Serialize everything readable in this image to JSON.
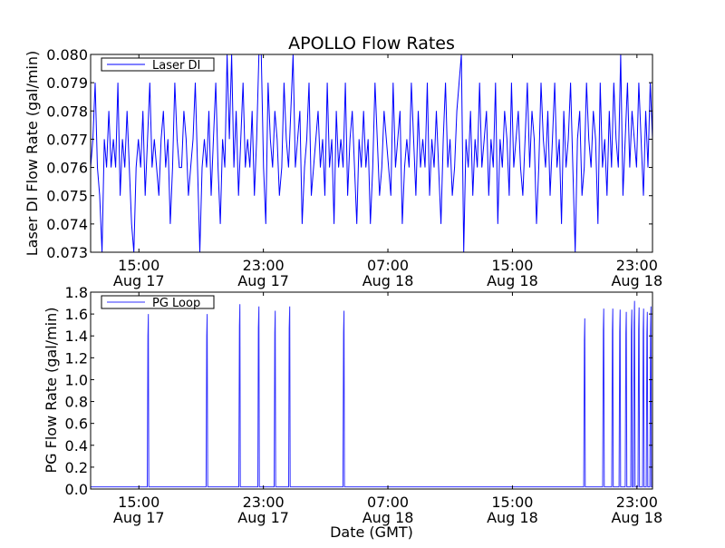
{
  "chart_data": [
    {
      "type": "line",
      "title": "APOLLO Flow Rates",
      "xlabel": "",
      "ylabel": "Laser DI Flow Rate (gal/min)",
      "x_units": "hours since Aug 17 00:00 GMT",
      "xlim": [
        11.9,
        48.0
      ],
      "ylim": [
        0.073,
        0.08
      ],
      "yticks": [
        "0.073",
        "0.074",
        "0.075",
        "0.076",
        "0.077",
        "0.078",
        "0.079",
        "0.080"
      ],
      "xticks": [
        {
          "value": 15,
          "time": "15:00",
          "date": "Aug 17"
        },
        {
          "value": 23,
          "time": "23:00",
          "date": "Aug 17"
        },
        {
          "value": 31,
          "time": "07:00",
          "date": "Aug 18"
        },
        {
          "value": 39,
          "time": "15:00",
          "date": "Aug 18"
        },
        {
          "value": 47,
          "time": "23:00",
          "date": "Aug 18"
        }
      ],
      "legend": {
        "label": "Laser DI",
        "placement": "top-left"
      },
      "color": "#0000ff",
      "series": [
        {
          "name": "Laser DI",
          "x_start": 11.9,
          "x_end": 48.0,
          "values": [
            0.076,
            0.077,
            0.079,
            0.076,
            0.075,
            0.073,
            0.077,
            0.076,
            0.078,
            0.076,
            0.077,
            0.076,
            0.079,
            0.075,
            0.077,
            0.076,
            0.078,
            0.076,
            0.074,
            0.073,
            0.076,
            0.077,
            0.076,
            0.078,
            0.075,
            0.077,
            0.079,
            0.076,
            0.077,
            0.076,
            0.075,
            0.077,
            0.078,
            0.076,
            0.077,
            0.074,
            0.076,
            0.079,
            0.077,
            0.076,
            0.076,
            0.078,
            0.077,
            0.075,
            0.076,
            0.077,
            0.079,
            0.076,
            0.073,
            0.076,
            0.077,
            0.076,
            0.078,
            0.075,
            0.077,
            0.079,
            0.076,
            0.074,
            0.077,
            0.076,
            0.08,
            0.077,
            0.08,
            0.076,
            0.078,
            0.075,
            0.077,
            0.079,
            0.076,
            0.077,
            0.076,
            0.078,
            0.075,
            0.077,
            0.08,
            0.08,
            0.076,
            0.074,
            0.079,
            0.077,
            0.076,
            0.078,
            0.077,
            0.075,
            0.076,
            0.079,
            0.077,
            0.076,
            0.078,
            0.08,
            0.076,
            0.077,
            0.078,
            0.074,
            0.076,
            0.077,
            0.079,
            0.075,
            0.076,
            0.077,
            0.078,
            0.076,
            0.077,
            0.075,
            0.079,
            0.076,
            0.077,
            0.074,
            0.078,
            0.076,
            0.077,
            0.076,
            0.079,
            0.075,
            0.077,
            0.078,
            0.076,
            0.074,
            0.077,
            0.076,
            0.078,
            0.076,
            0.077,
            0.074,
            0.076,
            0.079,
            0.077,
            0.075,
            0.076,
            0.078,
            0.077,
            0.076,
            0.075,
            0.079,
            0.076,
            0.077,
            0.078,
            0.074,
            0.076,
            0.077,
            0.076,
            0.079,
            0.077,
            0.075,
            0.078,
            0.076,
            0.077,
            0.076,
            0.079,
            0.075,
            0.077,
            0.076,
            0.078,
            0.076,
            0.074,
            0.077,
            0.079,
            0.076,
            0.077,
            0.075,
            0.076,
            0.078,
            0.079,
            0.08,
            0.073,
            0.077,
            0.076,
            0.078,
            0.075,
            0.077,
            0.076,
            0.079,
            0.076,
            0.077,
            0.078,
            0.075,
            0.077,
            0.076,
            0.079,
            0.074,
            0.077,
            0.076,
            0.078,
            0.077,
            0.075,
            0.079,
            0.076,
            0.077,
            0.078,
            0.076,
            0.075,
            0.077,
            0.079,
            0.076,
            0.078,
            0.077,
            0.074,
            0.076,
            0.079,
            0.077,
            0.076,
            0.078,
            0.075,
            0.077,
            0.079,
            0.076,
            0.077,
            0.074,
            0.078,
            0.076,
            0.077,
            0.079,
            0.076,
            0.073,
            0.077,
            0.078,
            0.075,
            0.076,
            0.079,
            0.077,
            0.076,
            0.078,
            0.077,
            0.074,
            0.079,
            0.076,
            0.077,
            0.075,
            0.078,
            0.076,
            0.079,
            0.077,
            0.076,
            0.08,
            0.075,
            0.077,
            0.079,
            0.076,
            0.078,
            0.077,
            0.076,
            0.079,
            0.077,
            0.075,
            0.078,
            0.076,
            0.079,
            0.077
          ]
        }
      ]
    },
    {
      "type": "line",
      "title": "",
      "xlabel": "Date (GMT)",
      "ylabel": "PG Flow Rate (gal/min)",
      "x_units": "hours since Aug 17 00:00 GMT",
      "xlim": [
        11.9,
        48.0
      ],
      "ylim": [
        0.0,
        1.8
      ],
      "yticks": [
        "0.0",
        "0.2",
        "0.4",
        "0.6",
        "0.8",
        "1.0",
        "1.2",
        "1.4",
        "1.6",
        "1.8"
      ],
      "xticks": [
        {
          "value": 15,
          "time": "15:00",
          "date": "Aug 17"
        },
        {
          "value": 23,
          "time": "23:00",
          "date": "Aug 17"
        },
        {
          "value": 31,
          "time": "07:00",
          "date": "Aug 18"
        },
        {
          "value": 39,
          "time": "15:00",
          "date": "Aug 18"
        },
        {
          "value": 47,
          "time": "23:00",
          "date": "Aug 18"
        }
      ],
      "legend": {
        "label": "PG Loop",
        "placement": "top-left"
      },
      "color": "#3030ff",
      "series": [
        {
          "name": "PG Loop",
          "baseline": 0.02,
          "spikes": [
            {
              "x": 15.58,
              "peak": 1.6
            },
            {
              "x": 19.36,
              "peak": 1.6
            },
            {
              "x": 21.46,
              "peak": 1.69
            },
            {
              "x": 22.68,
              "peak": 1.67
            },
            {
              "x": 23.73,
              "peak": 1.63
            },
            {
              "x": 24.66,
              "peak": 1.67
            },
            {
              "x": 28.15,
              "peak": 1.63
            },
            {
              "x": 43.62,
              "peak": 1.56
            },
            {
              "x": 44.84,
              "peak": 1.65
            },
            {
              "x": 45.42,
              "peak": 1.65
            },
            {
              "x": 45.89,
              "peak": 1.64
            },
            {
              "x": 46.29,
              "peak": 1.62
            },
            {
              "x": 46.64,
              "peak": 1.64
            },
            {
              "x": 46.82,
              "peak": 1.72
            },
            {
              "x": 47.11,
              "peak": 1.66
            },
            {
              "x": 47.4,
              "peak": 1.65
            },
            {
              "x": 47.64,
              "peak": 1.62
            },
            {
              "x": 47.87,
              "peak": 1.67
            }
          ]
        }
      ]
    }
  ]
}
